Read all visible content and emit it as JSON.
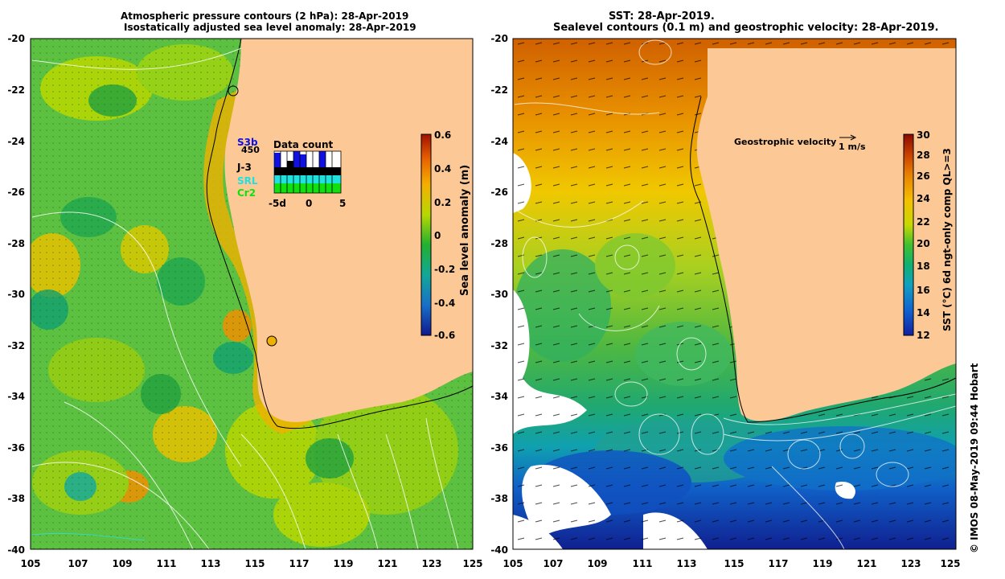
{
  "left_panel": {
    "title_line1": "Atmospheric pressure contours (2 hPa): 28-Apr-2019",
    "title_line2": "Isostatically adjusted sea level anomaly: 28-Apr-2019",
    "y_ticks": [
      "-20",
      "-22",
      "-24",
      "-26",
      "-28",
      "-30",
      "-32",
      "-34",
      "-36",
      "-38",
      "-40"
    ],
    "x_ticks": [
      "105",
      "107",
      "109",
      "111",
      "113",
      "115",
      "117",
      "119",
      "121",
      "123",
      "125"
    ],
    "colorbar": {
      "label": "Sea level anomaly (m)",
      "ticks": [
        "0.6",
        "0.4",
        "0.2",
        "0",
        "-0.2",
        "-0.4",
        "-0.6"
      ],
      "colors": [
        "#a01000",
        "#e86000",
        "#f4b000",
        "#b8d800",
        "#22b030",
        "#10a898",
        "#1870c8",
        "#101890"
      ]
    },
    "legend": {
      "satellites": [
        {
          "label": "S3b",
          "color": "#1010e0"
        },
        {
          "label": "J-3",
          "color": "#000000"
        },
        {
          "label": "SRL",
          "color": "#20e0e0"
        },
        {
          "label": "Cr2",
          "color": "#10e010"
        }
      ],
      "count": "450",
      "data_count_title": "Data count",
      "x_labels": [
        "-5d",
        "0",
        "5"
      ]
    }
  },
  "right_panel": {
    "title_line1": "SST: 28-Apr-2019.",
    "title_line2": "Sealevel contours (0.1 m) and geostrophic velocity: 28-Apr-2019.",
    "y_ticks": [
      "-20",
      "-22",
      "-24",
      "-26",
      "-28",
      "-30",
      "-32",
      "-34",
      "-36",
      "-38",
      "-40"
    ],
    "x_ticks": [
      "105",
      "107",
      "109",
      "111",
      "113",
      "115",
      "117",
      "119",
      "121",
      "123",
      "125"
    ],
    "colorbar": {
      "label": "SST (°C) 6d ngt-only comp QL>=3",
      "ticks": [
        "30",
        "28",
        "26",
        "24",
        "22",
        "20",
        "18",
        "16",
        "14",
        "12"
      ],
      "colors": [
        "#8a0a00",
        "#c84000",
        "#e88000",
        "#f4c000",
        "#c8d800",
        "#40c030",
        "#10b070",
        "#10a0c0",
        "#1060d0",
        "#1020a0"
      ]
    },
    "velocity_label": "Geostrophic velocity",
    "velocity_scale": "1 m/s"
  },
  "credit": "© IMOS 08-May-2019 09:44 Hobart",
  "land_color": "#fcc896"
}
